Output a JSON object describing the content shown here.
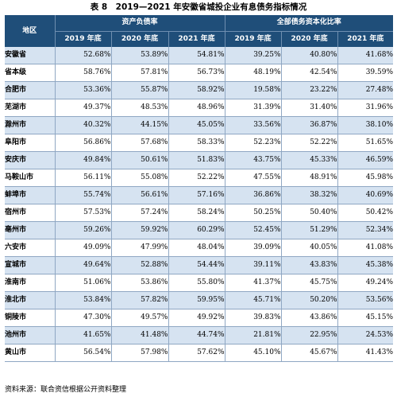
{
  "title": "表 8　2019—2021 年安徽省城投企业有息债务指标情况",
  "header": {
    "region": "地区",
    "group1": "资产负债率",
    "group2": "全部债务资本化比率",
    "years": [
      "2019 年底",
      "2020 年底",
      "2021 年底",
      "2019 年底",
      "2020 年底",
      "2021 年底"
    ]
  },
  "rows": [
    {
      "region": "安徽省",
      "values": [
        "52.68%",
        "53.89%",
        "54.81%",
        "39.25%",
        "40.80%",
        "41.68%"
      ]
    },
    {
      "region": "省本级",
      "values": [
        "58.76%",
        "57.81%",
        "56.73%",
        "48.19%",
        "42.54%",
        "39.59%"
      ]
    },
    {
      "region": "合肥市",
      "values": [
        "53.36%",
        "55.87%",
        "58.92%",
        "19.58%",
        "23.22%",
        "27.48%"
      ]
    },
    {
      "region": "芜湖市",
      "values": [
        "49.37%",
        "48.53%",
        "48.96%",
        "31.39%",
        "31.40%",
        "31.96%"
      ]
    },
    {
      "region": "滁州市",
      "values": [
        "40.32%",
        "44.15%",
        "45.05%",
        "33.56%",
        "36.87%",
        "38.10%"
      ]
    },
    {
      "region": "阜阳市",
      "values": [
        "56.86%",
        "57.68%",
        "58.33%",
        "52.23%",
        "52.22%",
        "51.65%"
      ]
    },
    {
      "region": "安庆市",
      "values": [
        "49.84%",
        "50.61%",
        "51.83%",
        "43.75%",
        "45.33%",
        "46.59%"
      ]
    },
    {
      "region": "马鞍山市",
      "values": [
        "56.11%",
        "55.08%",
        "52.22%",
        "47.55%",
        "48.91%",
        "45.98%"
      ]
    },
    {
      "region": "蚌埠市",
      "values": [
        "55.74%",
        "56.61%",
        "57.16%",
        "36.86%",
        "38.32%",
        "40.69%"
      ]
    },
    {
      "region": "宿州市",
      "values": [
        "57.53%",
        "57.24%",
        "58.24%",
        "50.25%",
        "50.40%",
        "50.42%"
      ]
    },
    {
      "region": "亳州市",
      "values": [
        "59.26%",
        "59.92%",
        "60.29%",
        "52.45%",
        "51.29%",
        "52.34%"
      ]
    },
    {
      "region": "六安市",
      "values": [
        "49.09%",
        "47.99%",
        "48.04%",
        "39.09%",
        "40.05%",
        "41.08%"
      ]
    },
    {
      "region": "宣城市",
      "values": [
        "49.64%",
        "52.88%",
        "54.44%",
        "39.11%",
        "43.83%",
        "45.38%"
      ]
    },
    {
      "region": "淮南市",
      "values": [
        "51.06%",
        "53.86%",
        "55.80%",
        "41.37%",
        "45.75%",
        "49.24%"
      ]
    },
    {
      "region": "淮北市",
      "values": [
        "53.84%",
        "57.82%",
        "59.95%",
        "45.71%",
        "50.20%",
        "53.56%"
      ]
    },
    {
      "region": "铜陵市",
      "values": [
        "47.30%",
        "49.57%",
        "49.92%",
        "39.83%",
        "43.86%",
        "45.15%"
      ]
    },
    {
      "region": "池州市",
      "values": [
        "41.65%",
        "41.48%",
        "44.74%",
        "21.81%",
        "22.95%",
        "24.53%"
      ]
    },
    {
      "region": "黄山市",
      "values": [
        "56.54%",
        "57.98%",
        "57.62%",
        "45.10%",
        "45.67%",
        "41.43%"
      ]
    }
  ],
  "source": "资料来源：联合资信根据公开资料整理",
  "colors": {
    "header_bg": "#1f4e79",
    "row_blue": "#d6e3f1",
    "row_white": "#ffffff"
  }
}
